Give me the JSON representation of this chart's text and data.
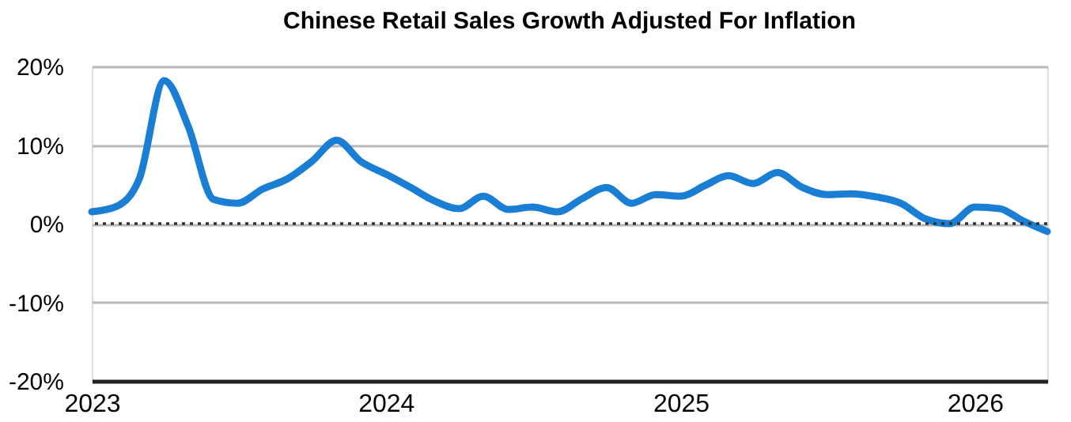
{
  "chart_data": {
    "type": "line",
    "title": "Chinese Retail Sales Growth Adjusted For Inflation",
    "x": [
      "2023-01",
      "2023-02",
      "2023-03",
      "2023-04",
      "2023-05",
      "2023-06",
      "2023-07",
      "2023-08",
      "2023-09",
      "2023-10",
      "2023-11",
      "2023-12",
      "2024-01",
      "2024-02",
      "2024-03",
      "2024-04",
      "2024-05",
      "2024-06",
      "2024-07",
      "2024-08",
      "2024-09",
      "2024-10",
      "2024-11",
      "2024-12",
      "2025-01",
      "2025-02",
      "2025-03",
      "2025-04",
      "2025-05",
      "2025-06",
      "2025-07",
      "2025-08",
      "2025-09",
      "2025-10",
      "2025-11",
      "2025-12",
      "2026-01",
      "2026-02",
      "2026-03",
      "2026-04"
    ],
    "series": [
      {
        "color": "#1a7fd4",
        "values": [
          1.5,
          2.2,
          5.7,
          18.2,
          12.3,
          3.1,
          2.6,
          4.4,
          5.7,
          7.9,
          10.6,
          7.9,
          6.3,
          4.6,
          2.9,
          1.9,
          3.5,
          1.8,
          2.1,
          1.5,
          3.2,
          4.6,
          2.6,
          3.7,
          3.5,
          4.9,
          6.1,
          5.1,
          6.5,
          4.6,
          3.7,
          3.8,
          3.4,
          2.6,
          0.6,
          0.0,
          2.1,
          1.9,
          0.4,
          -1.0
        ]
      }
    ],
    "xlim": [
      "2023-01",
      "2026-04"
    ],
    "xticks": [
      "2023",
      "2024",
      "2025",
      "2026"
    ],
    "ylim": [
      -20,
      20
    ],
    "yticks": [
      {
        "value": -20,
        "label": "-20%"
      },
      {
        "value": -10,
        "label": "-10%"
      },
      {
        "value": 0,
        "label": "0%"
      },
      {
        "value": 10,
        "label": "10%"
      },
      {
        "value": 20,
        "label": "20%"
      }
    ],
    "ref_lines": [
      {
        "axis": "y",
        "value": 0,
        "color": "#333333",
        "line_style": "dotted"
      }
    ],
    "grid": "y",
    "marker": "none",
    "line_style": "solid"
  }
}
